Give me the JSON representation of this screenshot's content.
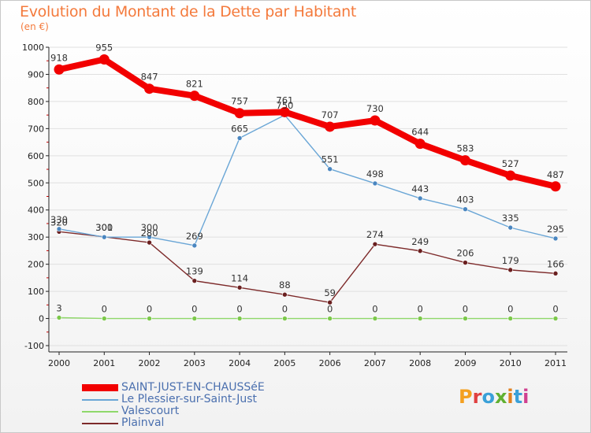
{
  "title": "Evolution du Montant de la Dette par Habitant",
  "subtitle": "(en €)",
  "logo_text": "Proxiti",
  "colors": {
    "title": "#f47a3c",
    "saint_just": "#f20000",
    "plessier": "#6aa6d6",
    "valescourt": "#8fd86a",
    "plainval": "#7d2a2a",
    "grid": "#e0e0e0",
    "axis": "#222222"
  },
  "chart_data": {
    "type": "line",
    "x": [
      "2000",
      "2001",
      "2002",
      "2003",
      "2004",
      "2005",
      "2006",
      "2007",
      "2008",
      "2009",
      "2010",
      "2011"
    ],
    "ylim": [
      -100,
      1000
    ],
    "yticks": [
      "-100",
      "0",
      "100",
      "200",
      "300",
      "400",
      "500",
      "600",
      "700",
      "800",
      "900",
      "1000"
    ],
    "grid": true,
    "legend_position": "bottom-left",
    "series": [
      {
        "name": "SAINT-JUST-EN-CHAUSSéE",
        "values": [
          918,
          955,
          847,
          821,
          757,
          761,
          707,
          730,
          644,
          583,
          527,
          487
        ],
        "labels": [
          "918",
          "955",
          "847",
          "821",
          "757",
          "761",
          "707",
          "730",
          "644",
          "583",
          "527",
          "487"
        ]
      },
      {
        "name": "Le Plessier-sur-Saint-Just",
        "values": [
          330,
          300,
          300,
          269,
          665,
          750,
          551,
          498,
          443,
          403,
          335,
          295
        ],
        "labels": [
          "330",
          "300",
          "300",
          "269",
          "665",
          "750",
          "551",
          "498",
          "443",
          "403",
          "335",
          "295"
        ]
      },
      {
        "name": "Valescourt",
        "values": [
          3,
          0,
          0,
          0,
          0,
          0,
          0,
          0,
          0,
          0,
          0,
          0
        ],
        "labels": [
          "3",
          "0",
          "0",
          "0",
          "0",
          "0",
          "0",
          "0",
          "0",
          "0",
          "0",
          "0"
        ]
      },
      {
        "name": "Plainval",
        "values": [
          320,
          301,
          280,
          139,
          114,
          88,
          59,
          274,
          249,
          206,
          179,
          166
        ],
        "labels": [
          "320",
          "301",
          "280",
          "139",
          "114",
          "88",
          "59",
          "274",
          "249",
          "206",
          "179",
          "166"
        ]
      }
    ]
  }
}
